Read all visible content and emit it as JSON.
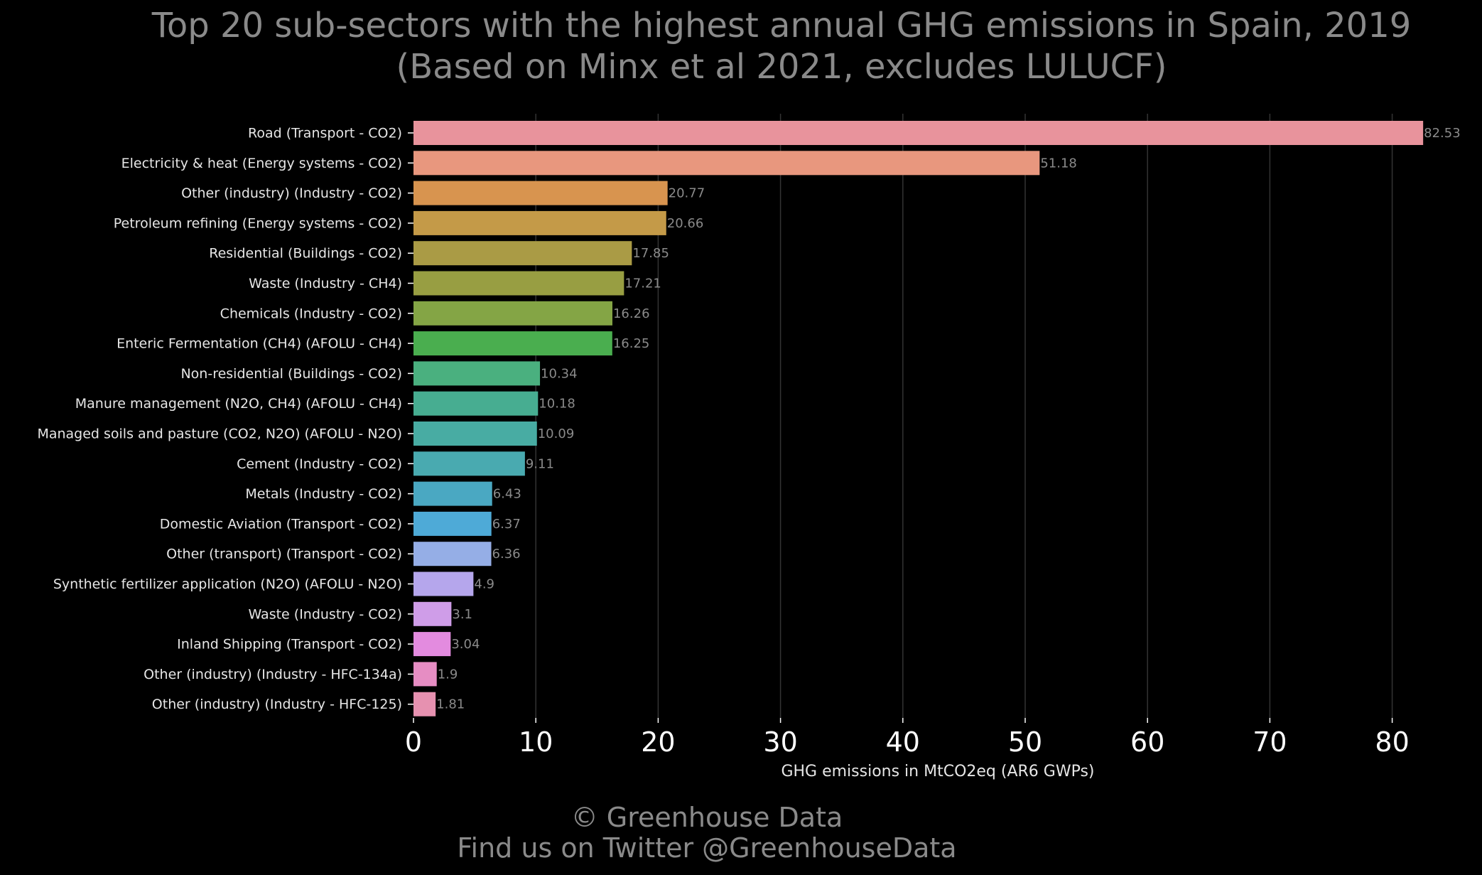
{
  "chart_data": {
    "type": "bar",
    "orientation": "horizontal",
    "title": "Top 20 sub-sectors with the highest annual GHG emissions in Spain, 2019",
    "subtitle": "(Based on Minx et al 2021, excludes LULUCF)",
    "xlabel": "GHG emissions in MtCO2eq (AR6 GWPs)",
    "ylabel": "",
    "xlim": [
      0,
      86
    ],
    "x_ticks": [
      "0",
      "10",
      "20",
      "30",
      "40",
      "50",
      "60",
      "70",
      "80"
    ],
    "grid": "vertical",
    "categories": [
      "Road (Transport - CO2)",
      "Electricity & heat (Energy systems - CO2)",
      "Other (industry) (Industry - CO2)",
      "Petroleum refining (Energy systems - CO2)",
      "Residential (Buildings - CO2)",
      "Waste (Industry - CH4)",
      "Chemicals (Industry - CO2)",
      "Enteric Fermentation (CH4) (AFOLU - CH4)",
      "Non-residential (Buildings - CO2)",
      "Manure management (N2O, CH4) (AFOLU - CH4)",
      "Managed soils and pasture (CO2, N2O) (AFOLU - N2O)",
      "Cement (Industry - CO2)",
      "Metals (Industry - CO2)",
      "Domestic Aviation (Transport - CO2)",
      "Other (transport) (Transport - CO2)",
      "Synthetic fertilizer application (N2O) (AFOLU - N2O)",
      "Waste (Industry - CO2)",
      "Inland Shipping (Transport - CO2)",
      "Other (industry) (Industry - HFC-134a)",
      "Other (industry) (Industry - HFC-125)"
    ],
    "values": [
      82.53,
      51.18,
      20.77,
      20.66,
      17.85,
      17.21,
      16.26,
      16.25,
      10.34,
      10.18,
      10.09,
      9.11,
      6.43,
      6.37,
      6.36,
      4.9,
      3.1,
      3.04,
      1.9,
      1.81
    ],
    "value_labels": [
      "82.53",
      "51.18",
      "20.77",
      "20.66",
      "17.85",
      "17.21",
      "16.26",
      "16.25",
      "10.34",
      "10.18",
      "10.09",
      "9.11",
      "6.43",
      "6.37",
      "6.36",
      "4.9",
      "3.1",
      "3.04",
      "1.9",
      "1.81"
    ],
    "colors": [
      "#e8939c",
      "#e8977e",
      "#d8944f",
      "#c49a48",
      "#aa9b45",
      "#989e42",
      "#84a545",
      "#4aae4f",
      "#4ab07f",
      "#47ad91",
      "#48aca3",
      "#49aab0",
      "#4aa8c2",
      "#4eaad7",
      "#95aee6",
      "#b5a6ec",
      "#cf9de8",
      "#e38bdf",
      "#e68dc3",
      "#e691b0"
    ]
  },
  "footer": {
    "copyright": "© Greenhouse Data",
    "twitter": "Find us on Twitter @GreenhouseData"
  },
  "colors": {
    "background": "#000000",
    "title": "#8a8a8a",
    "label": "#e6e6e6",
    "value_label": "#8a8a8a",
    "grid": "#333333"
  }
}
